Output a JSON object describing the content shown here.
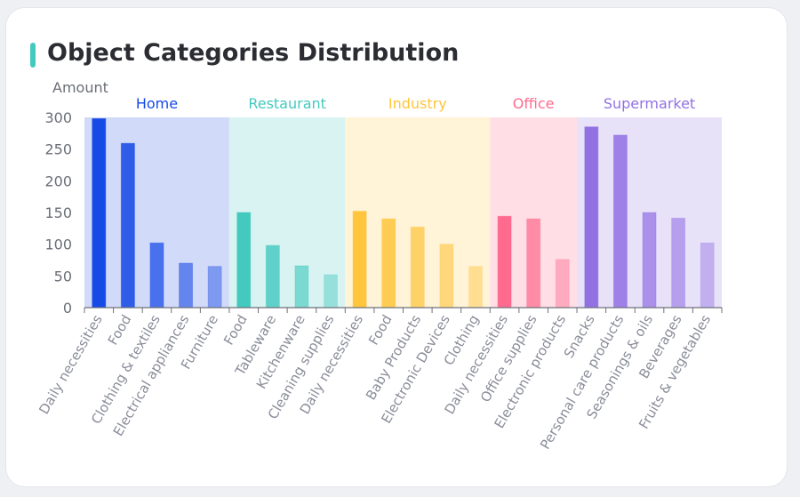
{
  "title": "Object Categories Distribution",
  "accent_color": "#44C9BF",
  "chart_data": {
    "type": "bar",
    "title": "Object Categories Distribution",
    "ylabel": "Amount",
    "ylim": [
      0,
      300
    ],
    "yticks": [
      0,
      50,
      100,
      150,
      200,
      250,
      300
    ],
    "grid": false,
    "groups": [
      {
        "name": "Home",
        "color": "#1649E6",
        "band": "#D1DAF8",
        "categories": [
          "Daily necessities",
          "Food",
          "Clothing & textiles",
          "Electrical appliances",
          "Furniture"
        ],
        "values": [
          298,
          259,
          102,
          70,
          65
        ]
      },
      {
        "name": "Restaurant",
        "color": "#44C9BF",
        "band": "#D9F3F2",
        "categories": [
          "Food",
          "Tableware",
          "Kitchenware",
          "Cleaning supplies"
        ],
        "values": [
          150,
          98,
          66,
          52
        ]
      },
      {
        "name": "Industry",
        "color": "#FFC53D",
        "band": "#FFF3D8",
        "categories": [
          "Daily necessities",
          "Food",
          "Baby Products",
          "Electronic Devices",
          "Clothing"
        ],
        "values": [
          152,
          140,
          127,
          100,
          65
        ]
      },
      {
        "name": "Office",
        "color": "#FF6B8E",
        "band": "#FFDEE6",
        "categories": [
          "Daily necessities",
          "Office supplies",
          "Electronic products"
        ],
        "values": [
          144,
          140,
          76
        ]
      },
      {
        "name": "Supermarket",
        "color": "#9271E3",
        "band": "#E8E2F9",
        "categories": [
          "Snacks",
          "Personal care products",
          "Seasonings & oils",
          "Beverages",
          "Fruits & vegetables"
        ],
        "values": [
          285,
          272,
          150,
          141,
          102
        ]
      }
    ]
  }
}
